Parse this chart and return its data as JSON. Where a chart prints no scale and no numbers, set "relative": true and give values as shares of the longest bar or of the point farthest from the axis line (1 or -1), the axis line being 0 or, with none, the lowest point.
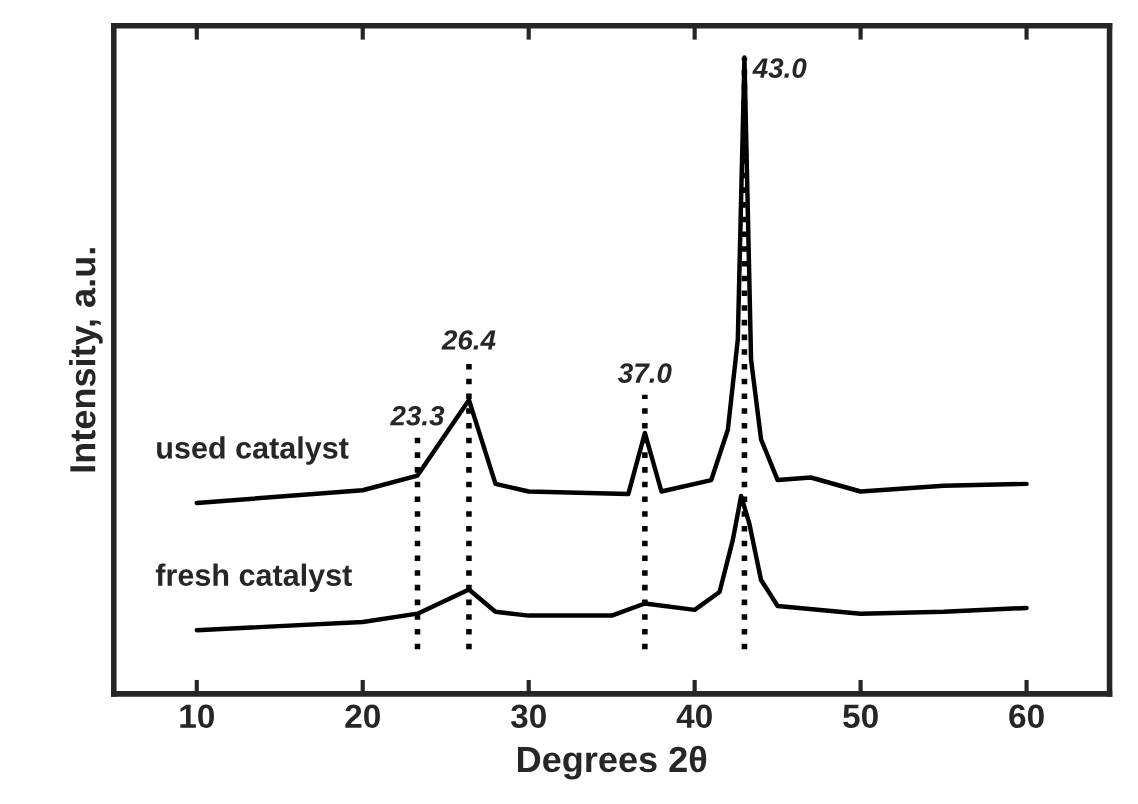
{
  "chart_data": {
    "type": "line",
    "relative": true,
    "xlabel": "Degrees 2θ",
    "ylabel": "Intensity, a.u.",
    "xlim": [
      5,
      65
    ],
    "xticks": [
      10,
      20,
      30,
      40,
      50,
      60
    ],
    "grid": false,
    "legend": false,
    "line_style": "solid",
    "marker": "none",
    "series": [
      {
        "name": "used catalyst",
        "color": "#000000",
        "x": [
          10,
          20,
          23.3,
          26.4,
          28,
          30,
          36,
          37,
          38,
          41,
          42,
          42.6,
          43,
          43.4,
          44,
          45,
          47,
          50,
          55,
          60
        ],
        "values": [
          0.3,
          0.32,
          0.343,
          0.462,
          0.33,
          0.318,
          0.314,
          0.41,
          0.318,
          0.336,
          0.415,
          0.557,
          1,
          0.525,
          0.4,
          0.336,
          0.34,
          0.318,
          0.327,
          0.33
        ]
      },
      {
        "name": "fresh catalyst",
        "color": "#000000",
        "x": [
          10,
          20,
          23.3,
          26.4,
          28,
          30,
          35,
          37,
          40,
          41.5,
          42.3,
          42.8,
          43.3,
          44,
          45,
          50,
          55,
          60
        ],
        "values": [
          0.1,
          0.113,
          0.126,
          0.164,
          0.129,
          0.123,
          0.123,
          0.142,
          0.132,
          0.16,
          0.242,
          0.311,
          0.267,
          0.179,
          0.138,
          0.126,
          0.129,
          0.135
        ]
      }
    ],
    "ref_lines": [
      {
        "axis": "x",
        "value": 23.3,
        "label": "23.3",
        "line_style": "dotted",
        "color": "#000000"
      },
      {
        "axis": "x",
        "value": 26.4,
        "label": "26.4",
        "line_style": "dotted",
        "color": "#000000"
      },
      {
        "axis": "x",
        "value": 37.0,
        "label": "37.0",
        "line_style": "dotted",
        "color": "#000000"
      },
      {
        "axis": "x",
        "value": 43.0,
        "label": "43.0",
        "line_style": "dotted",
        "color": "#000000"
      }
    ]
  }
}
